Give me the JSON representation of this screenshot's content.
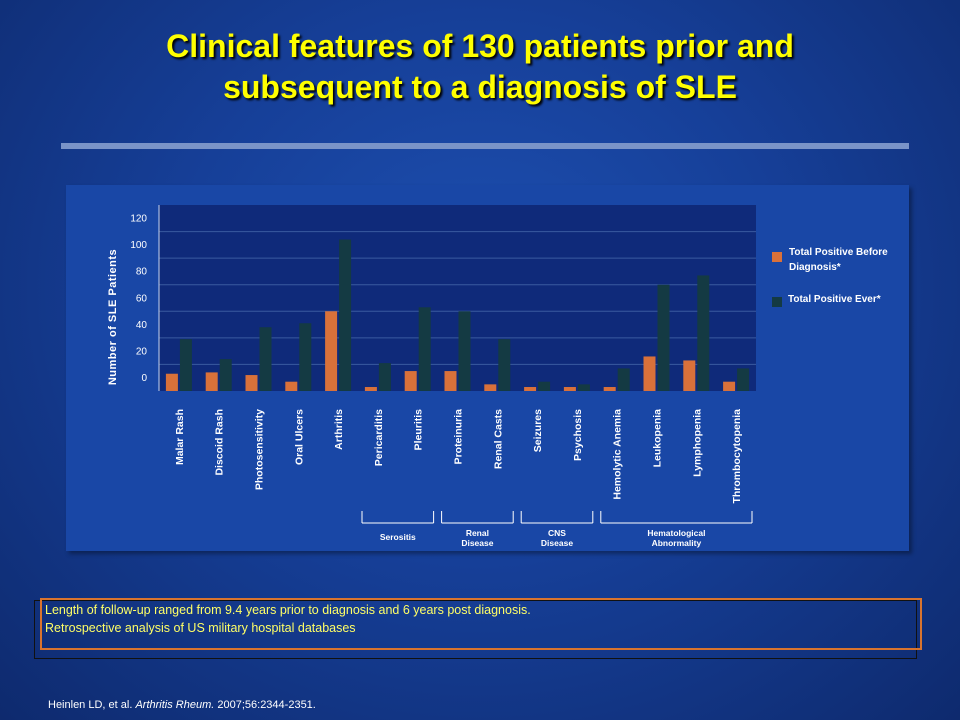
{
  "title_line1": "Clinical features of 130 patients prior and",
  "title_line2": "subsequent to a diagnosis of SLE",
  "colors": {
    "before": "#d9713a",
    "ever": "#143a43",
    "background": "#163f98",
    "title": "#ffff00"
  },
  "chart_data": {
    "type": "bar",
    "ylabel": "Number of SLE Patients",
    "ylim": [
      0,
      140
    ],
    "yticks": [
      0,
      20,
      40,
      60,
      80,
      100,
      120
    ],
    "categories": [
      "Malar Rash",
      "Discoid Rash",
      "Photosensitivity",
      "Oral Ulcers",
      "Arthritis",
      "Pericarditis",
      "Pleuritis",
      "Proteinuria",
      "Renal Casts",
      "Seizures",
      "Psychosis",
      "Hemolytic Anemia",
      "Leukopenia",
      "Lymphopenia",
      "Thrombocytopenia"
    ],
    "series": [
      {
        "name": "Total Positive Before Diagnosis*",
        "values": [
          13,
          14,
          12,
          7,
          60,
          3,
          15,
          15,
          5,
          3,
          3,
          3,
          26,
          23,
          7
        ]
      },
      {
        "name": "Total Positive Ever*",
        "values": [
          39,
          24,
          48,
          51,
          114,
          21,
          63,
          60,
          39,
          7,
          5,
          17,
          80,
          87,
          17
        ]
      }
    ],
    "groups": [
      {
        "label_lines": [
          "Serositis"
        ],
        "from": 5,
        "to": 6
      },
      {
        "label_lines": [
          "Renal",
          "Disease"
        ],
        "from": 7,
        "to": 8
      },
      {
        "label_lines": [
          "CNS",
          "Disease"
        ],
        "from": 9,
        "to": 10
      },
      {
        "label_lines": [
          "Hematological",
          "Abnormality"
        ],
        "from": 11,
        "to": 14
      }
    ],
    "legend_position": "right"
  },
  "legend": {
    "before_line1": "Total Positive Before",
    "before_line2": "Diagnosis*",
    "ever": "Total Positive Ever*"
  },
  "notes": {
    "line1": "Length of follow-up ranged from 9.4 years prior to diagnosis and 6 years post diagnosis.",
    "line2": "Retrospective analysis of US military hospital databases"
  },
  "citation": {
    "prefix": "Heinlen LD, et al.",
    "journal": "Arthritis Rheum.",
    "suffix": "2007;56:2344-2351."
  }
}
